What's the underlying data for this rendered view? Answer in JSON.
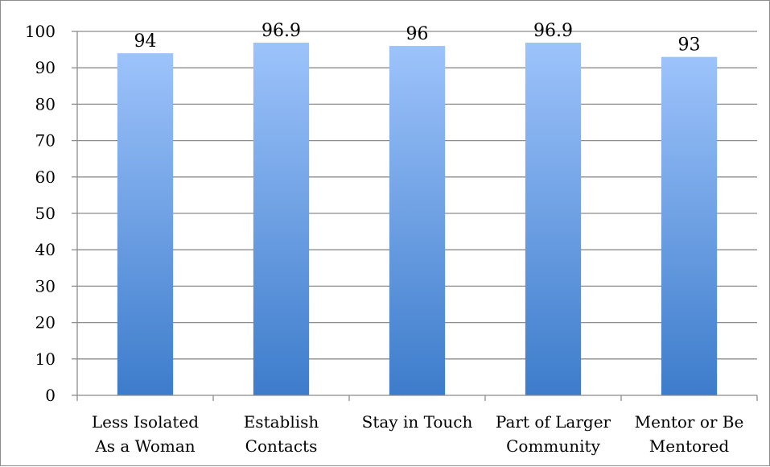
{
  "chart_data": {
    "type": "bar",
    "title": "",
    "xlabel": "",
    "ylabel": "",
    "categories": [
      [
        "Less Isolated",
        "As a Woman"
      ],
      [
        "Establish",
        "Contacts"
      ],
      [
        "Stay in Touch"
      ],
      [
        "Part of Larger",
        "Community"
      ],
      [
        "Mentor or Be",
        "Mentored"
      ]
    ],
    "values": [
      94,
      96.9,
      96,
      96.9,
      93
    ],
    "data_labels": [
      "94",
      "96.9",
      "96",
      "96.9",
      "93"
    ],
    "ylim": [
      0,
      100
    ],
    "yticks": [
      0,
      10,
      20,
      30,
      40,
      50,
      60,
      70,
      80,
      90,
      100
    ],
    "grid": true,
    "legend": "none",
    "colors": {
      "bar_top": "#9dc3fb",
      "bar_bottom": "#3d7ccb",
      "gridline": "#8c8c8c",
      "axis": "#8c8c8c",
      "frame": "#8c8c8c"
    }
  }
}
